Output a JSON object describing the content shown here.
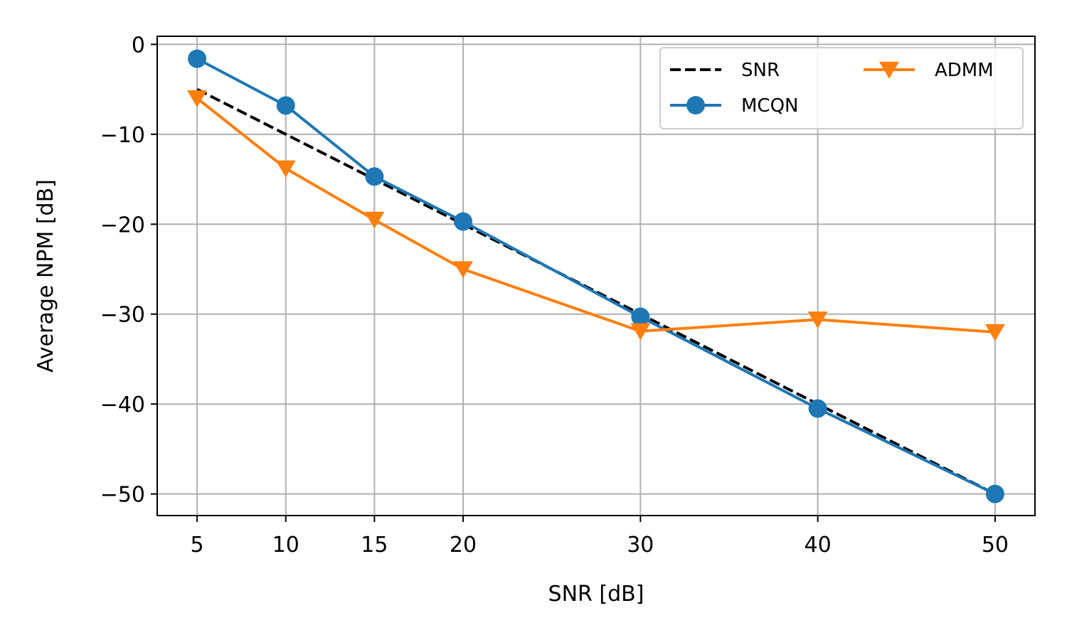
{
  "chart_data": {
    "type": "line",
    "title": "",
    "xlabel": "SNR [dB]",
    "ylabel": "Average NPM [dB]",
    "xlim": [
      2.75,
      52.25
    ],
    "ylim": [
      -52.4,
      0.9
    ],
    "x_ticks": [
      5,
      10,
      15,
      20,
      30,
      40,
      50
    ],
    "y_ticks": [
      0,
      -10,
      -20,
      -30,
      -40,
      -50
    ],
    "x_tick_labels": [
      "5",
      "10",
      "15",
      "20",
      "30",
      "40",
      "50"
    ],
    "y_tick_labels": [
      "0",
      "−10",
      "−20",
      "−30",
      "−40",
      "−50"
    ],
    "grid": true,
    "legend_position": "upper right",
    "x": [
      5,
      10,
      15,
      20,
      30,
      40,
      50
    ],
    "series": [
      {
        "name": "SNR",
        "values": [
          -5,
          -10,
          -15,
          -20,
          -30,
          -40,
          -50
        ],
        "color": "#000000",
        "style": "dashed",
        "marker": "none"
      },
      {
        "name": "MCQN",
        "values": [
          -1.6,
          -6.8,
          -14.7,
          -19.7,
          -30.3,
          -40.5,
          -50.0
        ],
        "color": "#1f77b4",
        "style": "solid",
        "marker": "circle"
      },
      {
        "name": "ADMM",
        "values": [
          -6.0,
          -13.8,
          -19.5,
          -25.0,
          -31.9,
          -30.6,
          -32.0
        ],
        "color": "#ff7f0e",
        "style": "solid",
        "marker": "triangle-down"
      }
    ]
  }
}
